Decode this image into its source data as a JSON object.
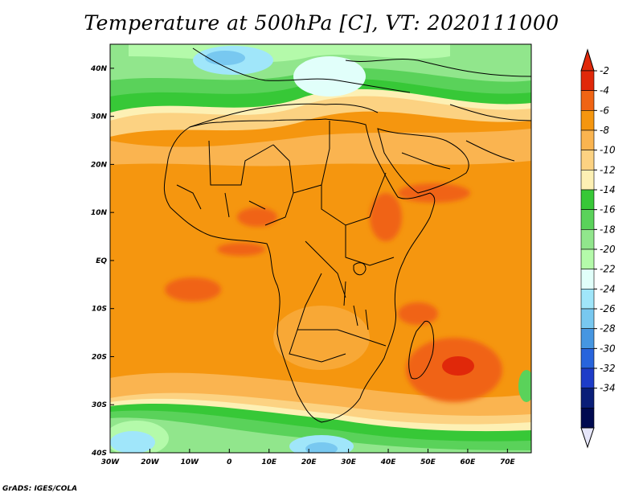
{
  "title": "Temperature at 500hPa [C], VT: 2020111000",
  "footer": "GrADS: IGES/COLA",
  "map": {
    "type": "contour-map",
    "variable": "Temperature at 500hPa",
    "units": "C",
    "lon_range": [
      -30,
      76
    ],
    "lat_range": [
      -40,
      45
    ],
    "lon_tick_labels": [
      "30W",
      "20W",
      "10W",
      "0",
      "10E",
      "20E",
      "30E",
      "40E",
      "50E",
      "60E",
      "70E"
    ],
    "lat_tick_labels": [
      "40S",
      "30S",
      "20S",
      "10S",
      "EQ",
      "10N",
      "20N",
      "30N",
      "40N"
    ]
  },
  "colorbar": {
    "labels": [
      "-2",
      "-4",
      "-6",
      "-8",
      "-10",
      "-12",
      "-14",
      "-16",
      "-18",
      "-20",
      "-22",
      "-24",
      "-26",
      "-28",
      "-30",
      "-32",
      "-34"
    ],
    "colors": [
      "#e0280a",
      "#f06414",
      "#f5960f",
      "#fab450",
      "#fcd282",
      "#fdf0b4",
      "#37c837",
      "#5ad25a",
      "#91e68c",
      "#b4faaa",
      "#e1fffa",
      "#a0e6fa",
      "#78c8f0",
      "#4696e1",
      "#2864dc",
      "#1e3cc8",
      "#0a1e78",
      "#000a50"
    ]
  }
}
